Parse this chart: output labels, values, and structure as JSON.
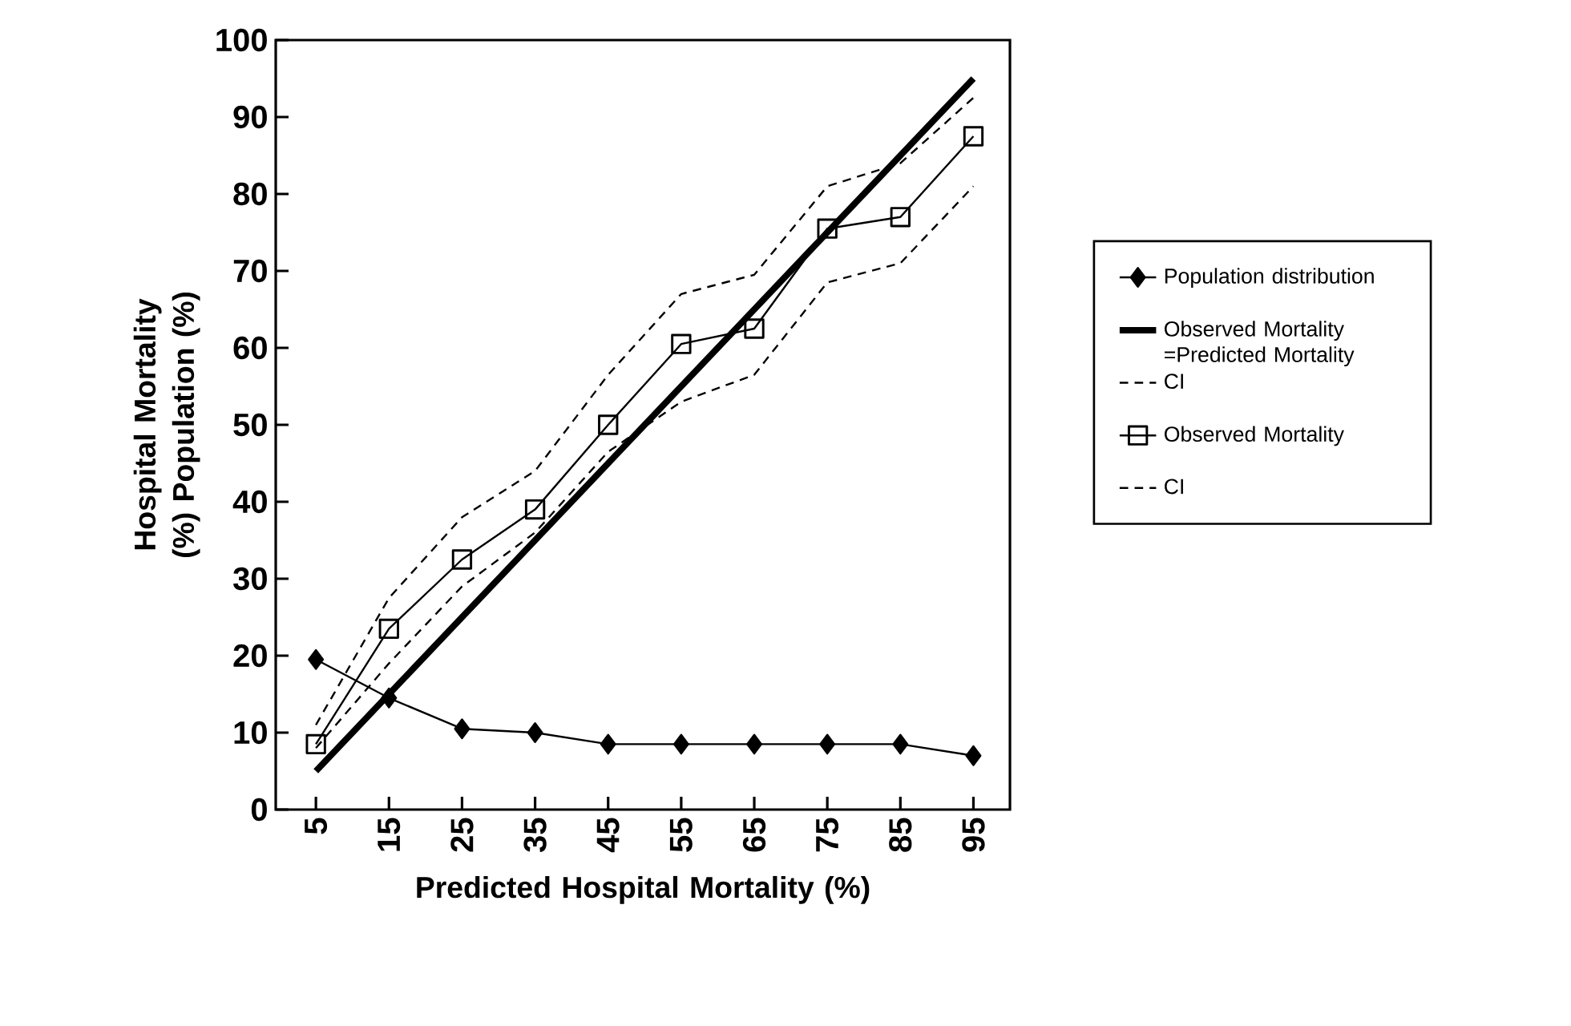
{
  "chart_data": {
    "type": "line",
    "xlabel": "Predicted Hospital Mortality (%)",
    "ylabel": "Hospital Mortality (%) Population (%)",
    "categories": [
      "5",
      "15",
      "25",
      "35",
      "45",
      "55",
      "65",
      "75",
      "85",
      "95"
    ],
    "ylim": [
      0,
      100
    ],
    "yticks": [
      0,
      10,
      20,
      30,
      40,
      50,
      60,
      70,
      80,
      90,
      100
    ],
    "grid": false,
    "legend": "right",
    "series": [
      {
        "name": "Population distribution",
        "color": "#000000",
        "marker": "diamond",
        "line_style": "solid",
        "values": [
          19.5,
          14.5,
          10.5,
          10,
          8.5,
          8.5,
          8.5,
          8.5,
          8.5,
          7
        ]
      },
      {
        "name": "Observed Mortality =Predicted Mortality",
        "color": "#000000",
        "marker": "none",
        "line_style": "solid",
        "values": [
          5,
          15,
          25,
          35,
          45,
          55,
          65,
          75,
          85,
          95
        ]
      },
      {
        "name": "CI",
        "color": "#000000",
        "marker": "none",
        "line_style": "dashed",
        "values": [
          11,
          27.5,
          38,
          44,
          56.5,
          67,
          69.5,
          81,
          84,
          92.5
        ]
      },
      {
        "name": "Observed Mortality",
        "color": "#000000",
        "marker": "square",
        "line_style": "solid",
        "values": [
          8.5,
          23.5,
          32.5,
          39,
          50,
          60.5,
          62.5,
          75.5,
          77,
          87.5
        ]
      },
      {
        "name": "CI",
        "color": "#000000",
        "marker": "none",
        "line_style": "dashed",
        "values": [
          8,
          19,
          29,
          36,
          46.5,
          53,
          56.5,
          68.5,
          71,
          81
        ]
      }
    ]
  }
}
